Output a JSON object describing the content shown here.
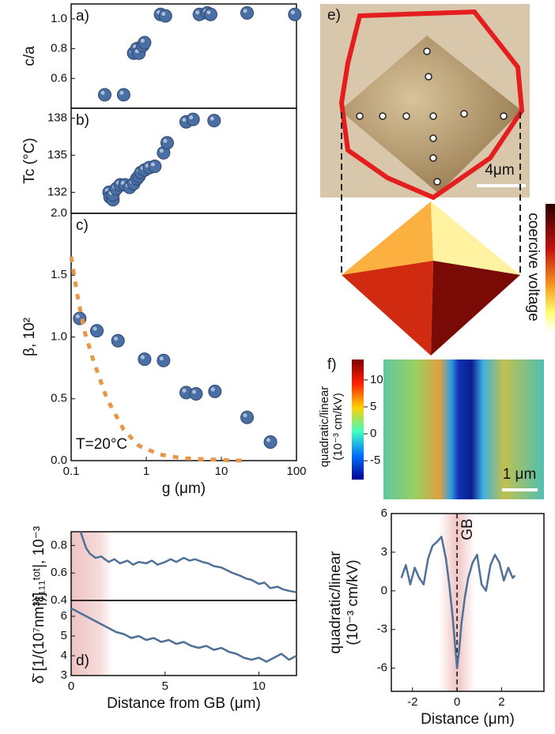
{
  "chart_data": [
    {
      "type": "scatter",
      "panel_label": "a)",
      "ylabel": "c/a",
      "xscale": "log",
      "xlim": [
        0.1,
        100
      ],
      "ylim": [
        0.4,
        1.1
      ],
      "yticks": [
        0.6,
        0.8,
        {
          "value": 1,
          "label": "1.0"
        }
      ],
      "series": [
        {
          "color": "#4a6fa5",
          "x": [
            0.28,
            0.5,
            0.68,
            0.75,
            0.8,
            0.9,
            0.95,
            1.55,
            1.8,
            5.1,
            6.5,
            7.2,
            22,
            95
          ],
          "values": [
            0.49,
            0.49,
            0.77,
            0.8,
            0.77,
            0.82,
            0.84,
            1.03,
            1.02,
            1.03,
            1.04,
            1.03,
            1.04,
            1.03
          ]
        }
      ]
    },
    {
      "type": "scatter",
      "panel_label": "b)",
      "ylabel": "Tc (°C)",
      "xscale": "log",
      "xlim": [
        0.1,
        100
      ],
      "ylim": [
        130.3,
        138.8
      ],
      "yticks": [
        132,
        135,
        138
      ],
      "series": [
        {
          "color": "#4a6fa5",
          "x": [
            0.32,
            0.33,
            0.36,
            0.36,
            0.4,
            0.45,
            0.52,
            0.6,
            0.68,
            0.75,
            0.8,
            0.85,
            0.95,
            1.1,
            1.3,
            1.7,
            1.9,
            3.4,
            4.2,
            8.0
          ],
          "values": [
            132.0,
            131.6,
            131.4,
            131.8,
            132.3,
            132.6,
            132.6,
            132.4,
            132.7,
            133.1,
            133.3,
            133.6,
            133.8,
            134.0,
            134.1,
            135.2,
            136.0,
            137.7,
            137.9,
            137.8
          ]
        }
      ]
    },
    {
      "type": "scatter",
      "panel_label": "c)",
      "ylabel": "β, 10²",
      "xlabel": "g (μm)",
      "annotation": "T=20°C",
      "xscale": "log",
      "xlim": [
        0.1,
        100
      ],
      "ylim": [
        0,
        2
      ],
      "xticks": [
        0.1,
        1,
        10,
        100
      ],
      "yticks": [
        {
          "value": 0,
          "label": "0.0"
        },
        0.5,
        {
          "value": 1,
          "label": "1.0"
        },
        1.5,
        {
          "value": 2,
          "label": "2.0"
        }
      ],
      "series": [
        {
          "color": "#4a6fa5",
          "x": [
            0.13,
            0.22,
            0.42,
            0.95,
            1.7,
            3.4,
            4.6,
            8.2,
            22,
            45
          ],
          "values": [
            1.15,
            1.05,
            0.97,
            0.82,
            0.81,
            0.55,
            0.54,
            0.56,
            0.35,
            0.15
          ]
        },
        {
          "color": "#e8964a",
          "style": "dashed",
          "x": [
            0.1,
            0.12,
            0.15,
            0.2,
            0.3,
            0.5,
            0.8,
            1.5,
            3,
            10,
            20
          ],
          "values": [
            1.65,
            1.35,
            1.05,
            0.8,
            0.5,
            0.25,
            0.12,
            0.05,
            0.02,
            0.005,
            0
          ]
        }
      ]
    },
    {
      "type": "line",
      "ylabel": "|ε̄₁₁₁ᵗᵒᵗ|, 10⁻³",
      "xlim": [
        0,
        12
      ],
      "ylim": [
        0.4,
        0.9
      ],
      "yticks": [
        0.4,
        0.6,
        0.8
      ],
      "highlight": [
        0,
        2.2
      ],
      "series": [
        {
          "color": "#4f7198",
          "x": [
            0.5,
            0.8,
            1,
            1.3,
            1.6,
            2,
            2.3,
            2.6,
            3,
            3.3,
            3.6,
            4,
            4.3,
            4.6,
            5,
            5.3,
            5.6,
            6,
            6.3,
            6.6,
            7,
            7.3,
            7.6,
            8,
            8.3,
            8.6,
            9,
            9.3,
            9.6,
            10,
            10.3,
            10.6,
            11,
            11.3,
            11.6,
            12
          ],
          "values": [
            0.9,
            0.78,
            0.74,
            0.71,
            0.72,
            0.68,
            0.7,
            0.67,
            0.69,
            0.66,
            0.68,
            0.67,
            0.69,
            0.66,
            0.68,
            0.7,
            0.68,
            0.71,
            0.69,
            0.7,
            0.68,
            0.67,
            0.65,
            0.64,
            0.62,
            0.6,
            0.58,
            0.56,
            0.55,
            0.52,
            0.53,
            0.49,
            0.5,
            0.48,
            0.47,
            0.46
          ]
        }
      ]
    },
    {
      "type": "line",
      "panel_label": "d)",
      "ylabel": "δ̄ [1/(10⁷nm³)]",
      "xlabel": "Distance from GB (μm)",
      "xlim": [
        0,
        12
      ],
      "ylim": [
        3,
        6.8
      ],
      "xticks": [
        0,
        5,
        10
      ],
      "yticks": [
        3,
        4,
        5,
        6
      ],
      "highlight": [
        0,
        2.2
      ],
      "series": [
        {
          "color": "#4f7198",
          "x": [
            0,
            0.4,
            0.8,
            1.2,
            1.6,
            2,
            2.4,
            2.8,
            3.2,
            3.6,
            4,
            4.4,
            4.8,
            5.2,
            5.6,
            6,
            6.4,
            6.8,
            7.2,
            7.6,
            8,
            8.4,
            8.8,
            9.2,
            9.6,
            10,
            10.4,
            10.8,
            11.2,
            11.6,
            12
          ],
          "values": [
            6.4,
            6.2,
            6.0,
            5.8,
            5.6,
            5.4,
            5.2,
            5.1,
            4.9,
            5.0,
            4.8,
            4.9,
            4.7,
            4.8,
            4.6,
            4.7,
            4.5,
            4.4,
            4.5,
            4.3,
            4.4,
            4.2,
            4.1,
            3.9,
            3.8,
            3.9,
            3.7,
            3.9,
            4.1,
            3.8,
            4.0
          ]
        }
      ]
    },
    {
      "type": "image",
      "panel_label": "e)",
      "scalebar": "4μm",
      "colorbar_label": "coercive voltage"
    },
    {
      "type": "heatmap",
      "panel_label": "f)",
      "colorbar_label": [
        "quadratic/linear",
        "(10⁻³ cm/kV)"
      ],
      "clim": [
        -8.5,
        13.8
      ],
      "cticks": [
        -5,
        0,
        5,
        10
      ],
      "scalebar": "1 μm"
    },
    {
      "type": "line",
      "ylabel": [
        "quadratic/linear",
        "(10⁻³ cm/kV)"
      ],
      "xlabel": "Distance (μm)",
      "annotation": "GB",
      "vline": 0,
      "xlim": [
        -2.95,
        3.9
      ],
      "ylim": [
        -7.8,
        6
      ],
      "xticks": [
        -2,
        0,
        2
      ],
      "yticks": [
        -6,
        -3,
        0,
        3,
        6
      ],
      "highlight": [
        -0.8,
        0.8
      ],
      "series": [
        {
          "color": "#4f7198",
          "x": [
            -2.5,
            -2.3,
            -2.1,
            -1.9,
            -1.7,
            -1.5,
            -1.3,
            -1.1,
            -0.9,
            -0.7,
            -0.5,
            -0.35,
            -0.2,
            -0.1,
            0,
            0.1,
            0.2,
            0.35,
            0.5,
            0.7,
            0.9,
            1.1,
            1.3,
            1.5,
            1.7,
            1.9,
            2.1,
            2.3,
            2.5,
            2.6
          ],
          "values": [
            1,
            2,
            0.5,
            1.8,
            1,
            0.5,
            2.5,
            3.5,
            3.8,
            4.2,
            2.5,
            0.5,
            -2,
            -4,
            -6,
            -4.5,
            -2.5,
            -0.5,
            1,
            2.2,
            2.8,
            0.5,
            0,
            2,
            2.8,
            2.2,
            0.8,
            1.8,
            1,
            1.2
          ]
        }
      ]
    }
  ]
}
